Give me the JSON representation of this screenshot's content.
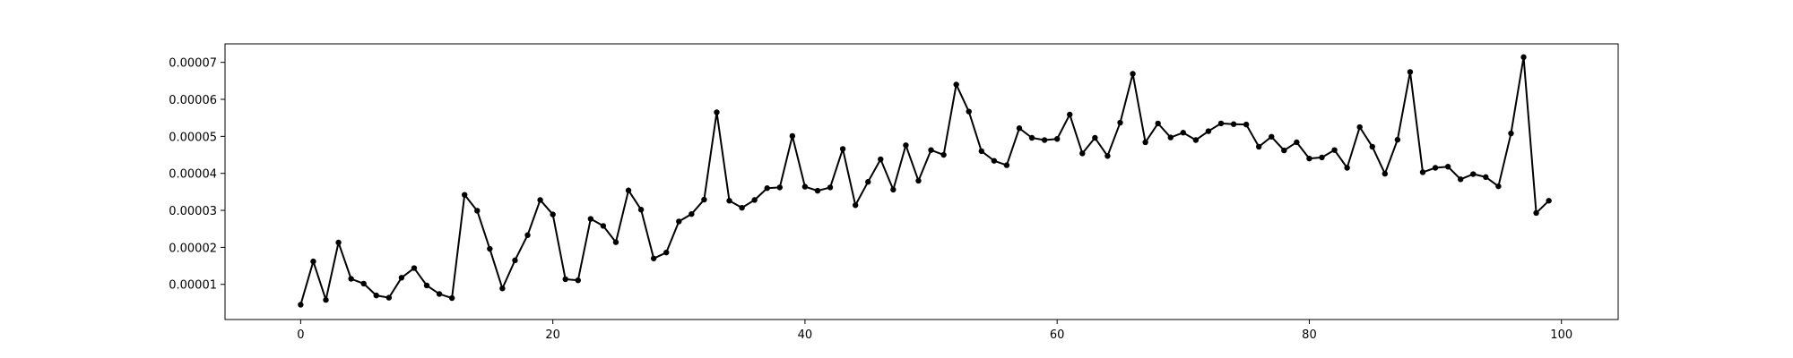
{
  "chart_data": {
    "type": "line",
    "title": "",
    "xlabel": "",
    "ylabel": "",
    "x": [
      0,
      1,
      2,
      3,
      4,
      5,
      6,
      7,
      8,
      9,
      10,
      11,
      12,
      13,
      14,
      15,
      16,
      17,
      18,
      19,
      20,
      21,
      22,
      23,
      24,
      25,
      26,
      27,
      28,
      29,
      30,
      31,
      32,
      33,
      34,
      35,
      36,
      37,
      38,
      39,
      40,
      41,
      42,
      43,
      44,
      45,
      46,
      47,
      48,
      49,
      50,
      51,
      52,
      53,
      54,
      55,
      56,
      57,
      58,
      59,
      60,
      61,
      62,
      63,
      64,
      65,
      66,
      67,
      68,
      69,
      70,
      71,
      72,
      73,
      74,
      75,
      76,
      77,
      78,
      79,
      80,
      81,
      82,
      83,
      84,
      85,
      86,
      87,
      88,
      89,
      90,
      91,
      92,
      93,
      94,
      95,
      96,
      97,
      98,
      99
    ],
    "series": [
      {
        "color": "#000000",
        "marker": "circle",
        "values": [
          4.5e-06,
          1.62e-05,
          5.8e-06,
          2.13e-05,
          1.15e-05,
          1.02e-05,
          7e-06,
          6.4e-06,
          1.18e-05,
          1.44e-05,
          9.7e-06,
          7.4e-06,
          6.3e-06,
          3.42e-05,
          2.99e-05,
          1.96e-05,
          8.9e-06,
          1.65e-05,
          2.33e-05,
          3.28e-05,
          2.89e-05,
          1.14e-05,
          1.11e-05,
          2.77e-05,
          2.58e-05,
          2.14e-05,
          3.54e-05,
          3.02e-05,
          1.7e-05,
          1.86e-05,
          2.7e-05,
          2.9e-05,
          3.29e-05,
          5.65e-05,
          3.26e-05,
          3.07e-05,
          3.28e-05,
          3.6e-05,
          3.62e-05,
          5.01e-05,
          3.64e-05,
          3.53e-05,
          3.62e-05,
          4.66e-05,
          3.14e-05,
          3.77e-05,
          4.38e-05,
          3.56e-05,
          4.76e-05,
          3.8e-05,
          4.63e-05,
          4.5e-05,
          6.4e-05,
          5.67e-05,
          4.6e-05,
          4.34e-05,
          4.22e-05,
          5.22e-05,
          4.96e-05,
          4.9e-05,
          4.93e-05,
          5.59e-05,
          4.54e-05,
          4.96e-05,
          4.47e-05,
          5.37e-05,
          6.69e-05,
          4.84e-05,
          5.35e-05,
          4.97e-05,
          5.1e-05,
          4.9e-05,
          5.14e-05,
          5.35e-05,
          5.33e-05,
          5.32e-05,
          4.72e-05,
          4.99e-05,
          4.62e-05,
          4.84e-05,
          4.4e-05,
          4.43e-05,
          4.63e-05,
          4.15e-05,
          5.25e-05,
          4.72e-05,
          3.99e-05,
          4.91e-05,
          6.74e-05,
          4.03e-05,
          4.15e-05,
          4.18e-05,
          3.84e-05,
          3.98e-05,
          3.9e-05,
          3.65e-05,
          5.08e-05,
          7.14e-05,
          2.93e-05,
          3.26e-05
        ]
      }
    ],
    "xlim": [
      -6,
      104.5
    ],
    "ylim": [
      5e-07,
      7.5e-05
    ],
    "xticks": [
      0,
      20,
      40,
      60,
      80,
      100
    ],
    "xtick_labels": [
      "0",
      "20",
      "40",
      "60",
      "80",
      "100"
    ],
    "yticks": [
      1e-05,
      2e-05,
      3e-05,
      4e-05,
      5e-05,
      6e-05,
      7e-05
    ],
    "ytick_labels": [
      "0.00001",
      "0.00002",
      "0.00003",
      "0.00004",
      "0.00005",
      "0.00006",
      "0.00007"
    ],
    "grid": false,
    "legend": "none"
  }
}
